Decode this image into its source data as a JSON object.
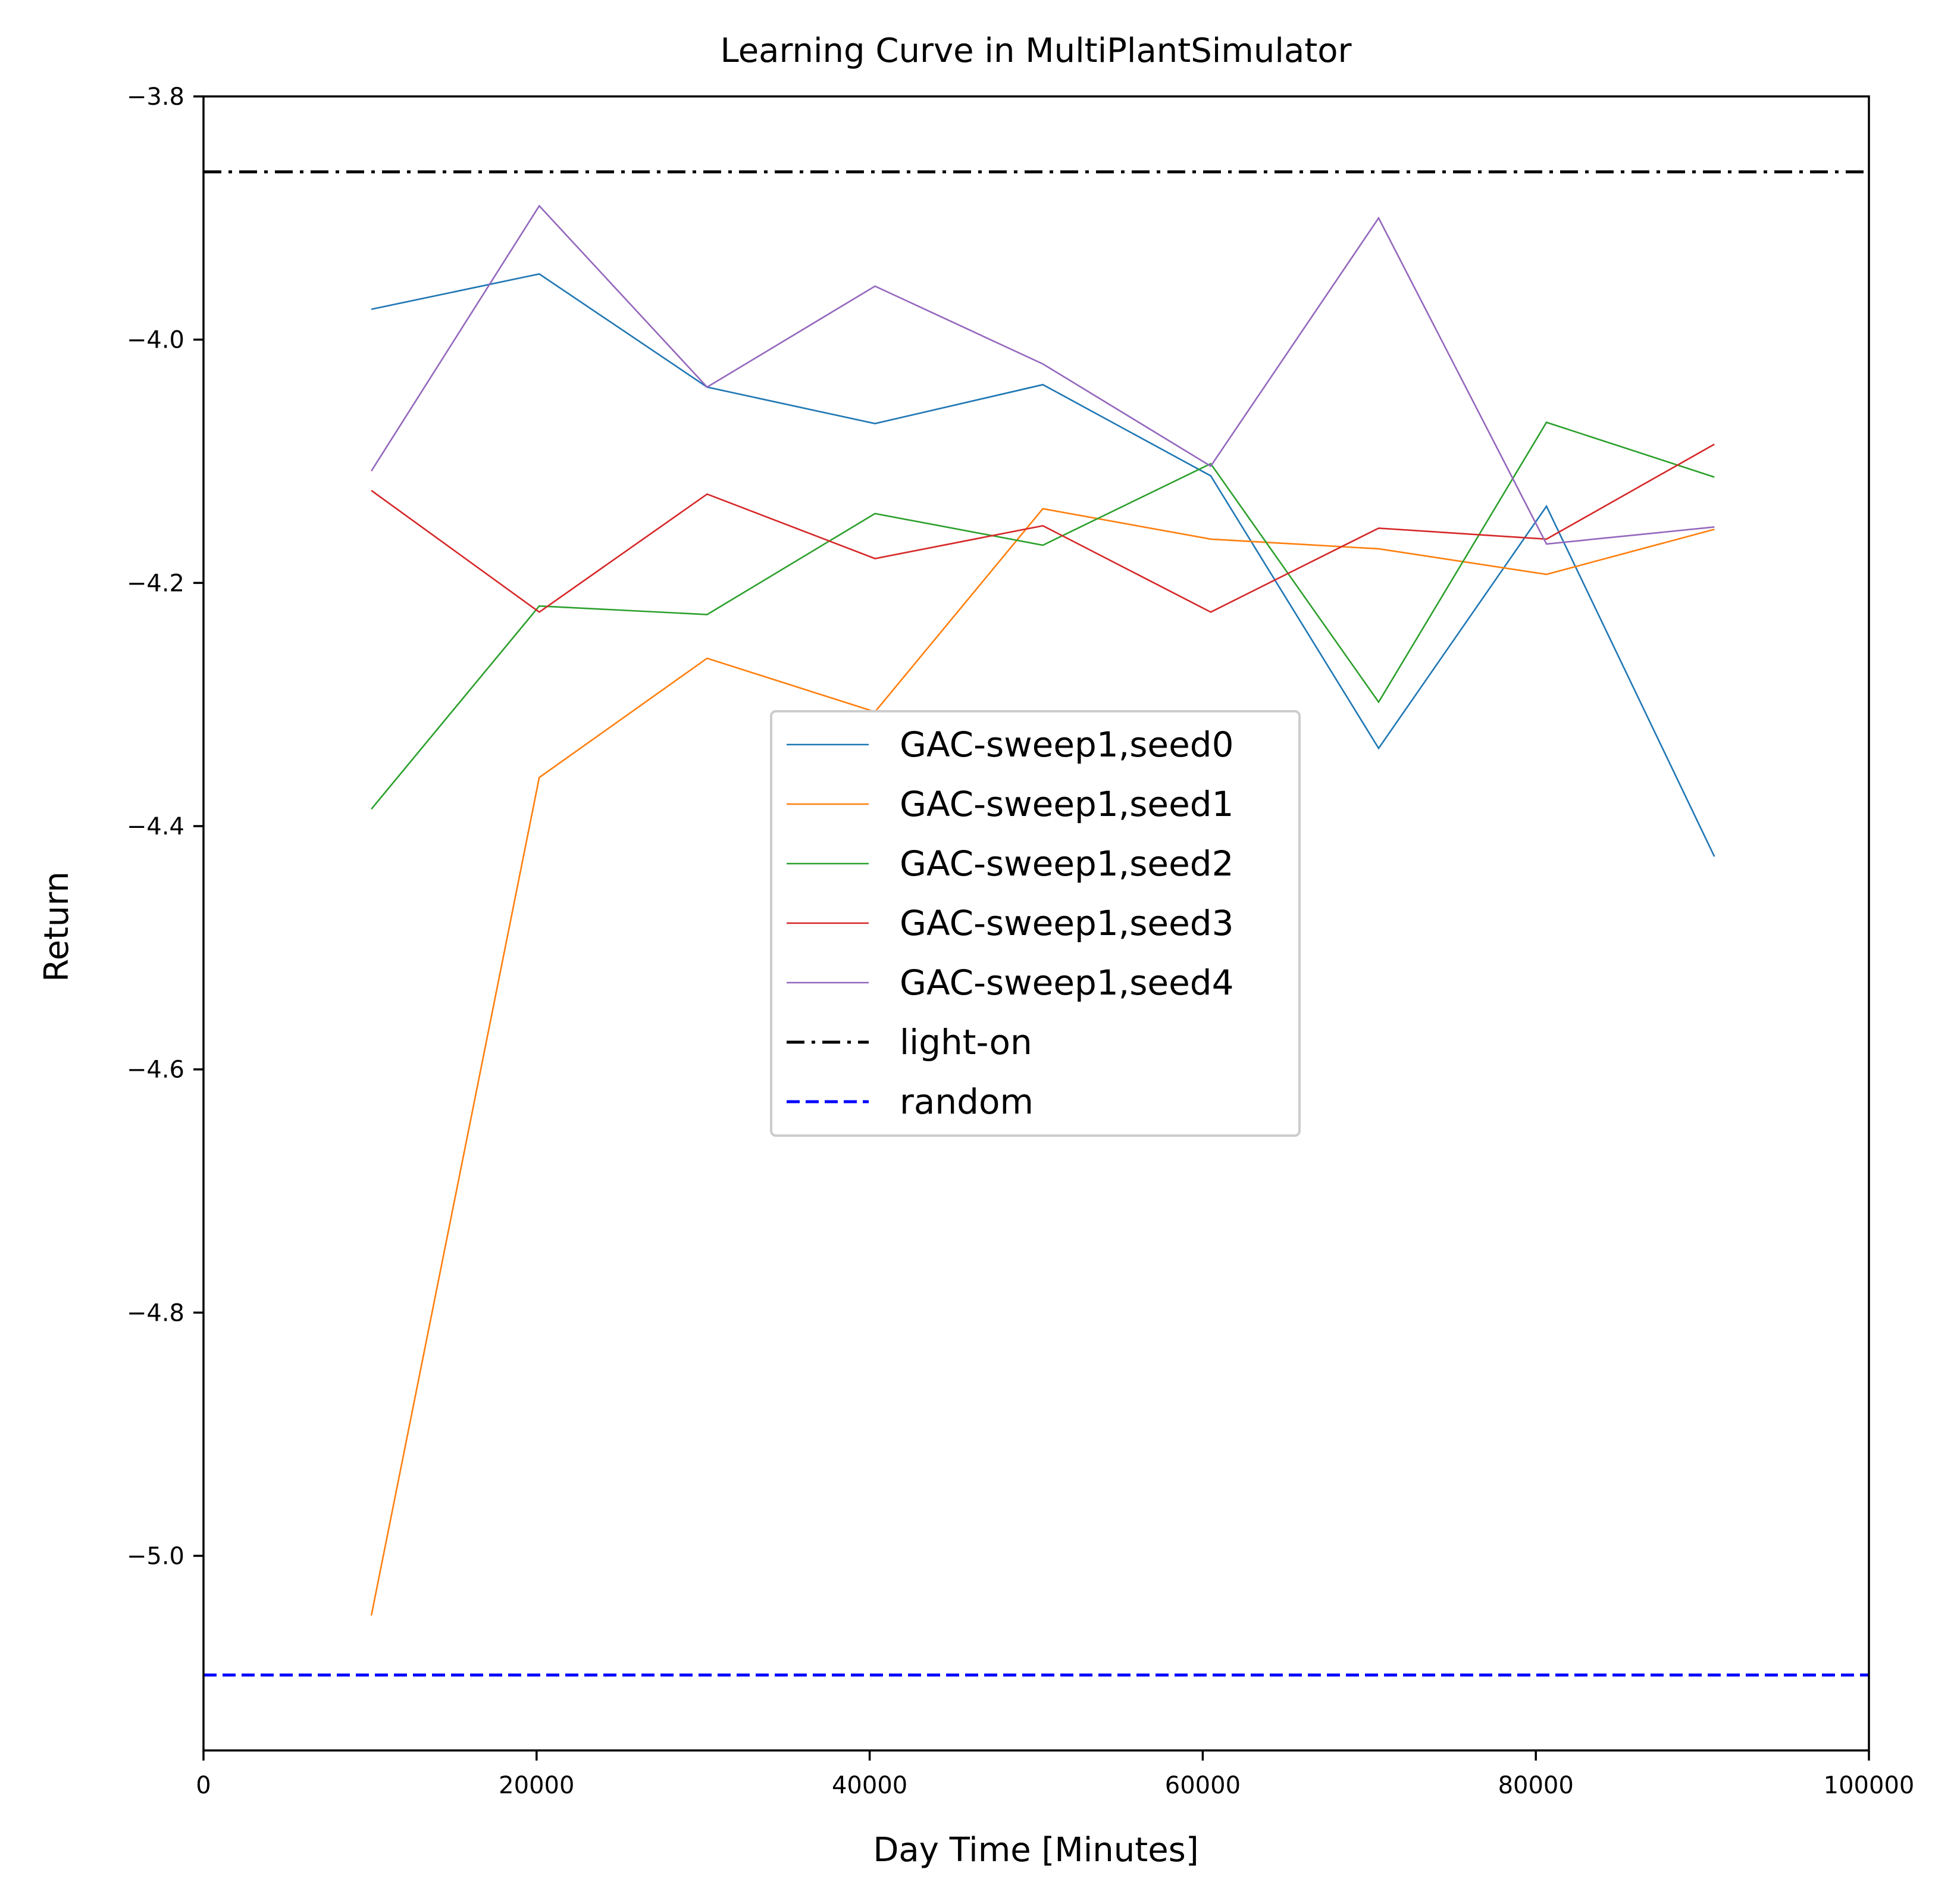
{
  "chart_data": {
    "type": "line",
    "title": "Learning Curve in MultiPlantSimulator",
    "xlabel": "Day Time [Minutes]",
    "ylabel": "Return",
    "xlim": [
      0,
      100000
    ],
    "ylim": [
      -5.16,
      -3.8
    ],
    "xticks": [
      0,
      20000,
      40000,
      60000,
      80000,
      100000
    ],
    "xtick_labels": [
      "0",
      "20000",
      "40000",
      "60000",
      "80000",
      "100000"
    ],
    "yticks": [
      -3.8,
      -4.0,
      -4.2,
      -4.4,
      -4.6,
      -4.8,
      -5.0
    ],
    "ytick_labels": [
      "−3.8",
      "−4.0",
      "−4.2",
      "−4.4",
      "−4.6",
      "−4.8",
      "−5.0"
    ],
    "grid": false,
    "legend_position": "center",
    "x": [
      10080,
      20160,
      30240,
      40320,
      50400,
      60480,
      70560,
      80640,
      90720
    ],
    "series": [
      {
        "name": "GAC-sweep1,seed0",
        "color": "#1f77b4",
        "values": [
          -3.975,
          -3.946,
          -4.039,
          -4.069,
          -4.037,
          -4.112,
          -4.336,
          -4.137,
          -4.425
        ]
      },
      {
        "name": "GAC-sweep1,seed1",
        "color": "#ff7f0e",
        "values": [
          -5.049,
          -4.36,
          -4.262,
          -4.306,
          -4.139,
          -4.164,
          -4.172,
          -4.193,
          -4.156
        ]
      },
      {
        "name": "GAC-sweep1,seed2",
        "color": "#2ca02c",
        "values": [
          -4.386,
          -4.219,
          -4.226,
          -4.143,
          -4.169,
          -4.102,
          -4.298,
          -4.068,
          -4.113
        ]
      },
      {
        "name": "GAC-sweep1,seed3",
        "color": "#d62728",
        "values": [
          -4.124,
          -4.224,
          -4.127,
          -4.18,
          -4.153,
          -4.224,
          -4.155,
          -4.164,
          -4.086
        ]
      },
      {
        "name": "GAC-sweep1,seed4",
        "color": "#9467bd",
        "values": [
          -4.108,
          -3.89,
          -4.039,
          -3.956,
          -4.02,
          -4.104,
          -3.9,
          -4.168,
          -4.154
        ]
      }
    ],
    "reference_lines": [
      {
        "name": "light-on",
        "color": "#000000",
        "style": "dashdot",
        "y": -3.862
      },
      {
        "name": "random",
        "color": "#0000ff",
        "style": "dashed",
        "y": -5.098
      }
    ]
  }
}
